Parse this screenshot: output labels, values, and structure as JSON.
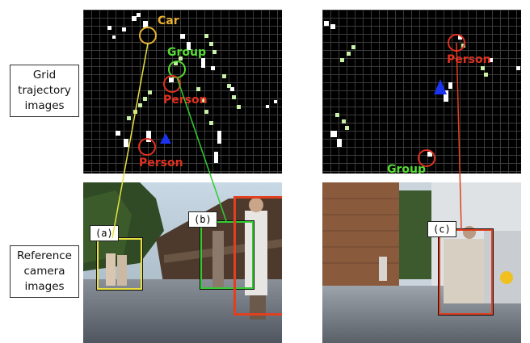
{
  "row_labels": {
    "grid": "Grid\ntrajectory\nimages",
    "ref": "Reference\ncamera\nimages"
  },
  "grid_left": {
    "car": "Car",
    "group": "Group",
    "person_top": "Person",
    "person_bottom": "Person"
  },
  "grid_right": {
    "person": "Person",
    "group": "Group"
  },
  "tags": {
    "a": "(a)",
    "b": "(b)",
    "c": "(c)"
  },
  "colors": {
    "car": "#e8b030",
    "group": "#55dd33",
    "person": "#e03020",
    "robot": "#1a33ee",
    "link_a": "#e8e040",
    "link_b": "#33cc33",
    "link_c": "#e04020"
  }
}
